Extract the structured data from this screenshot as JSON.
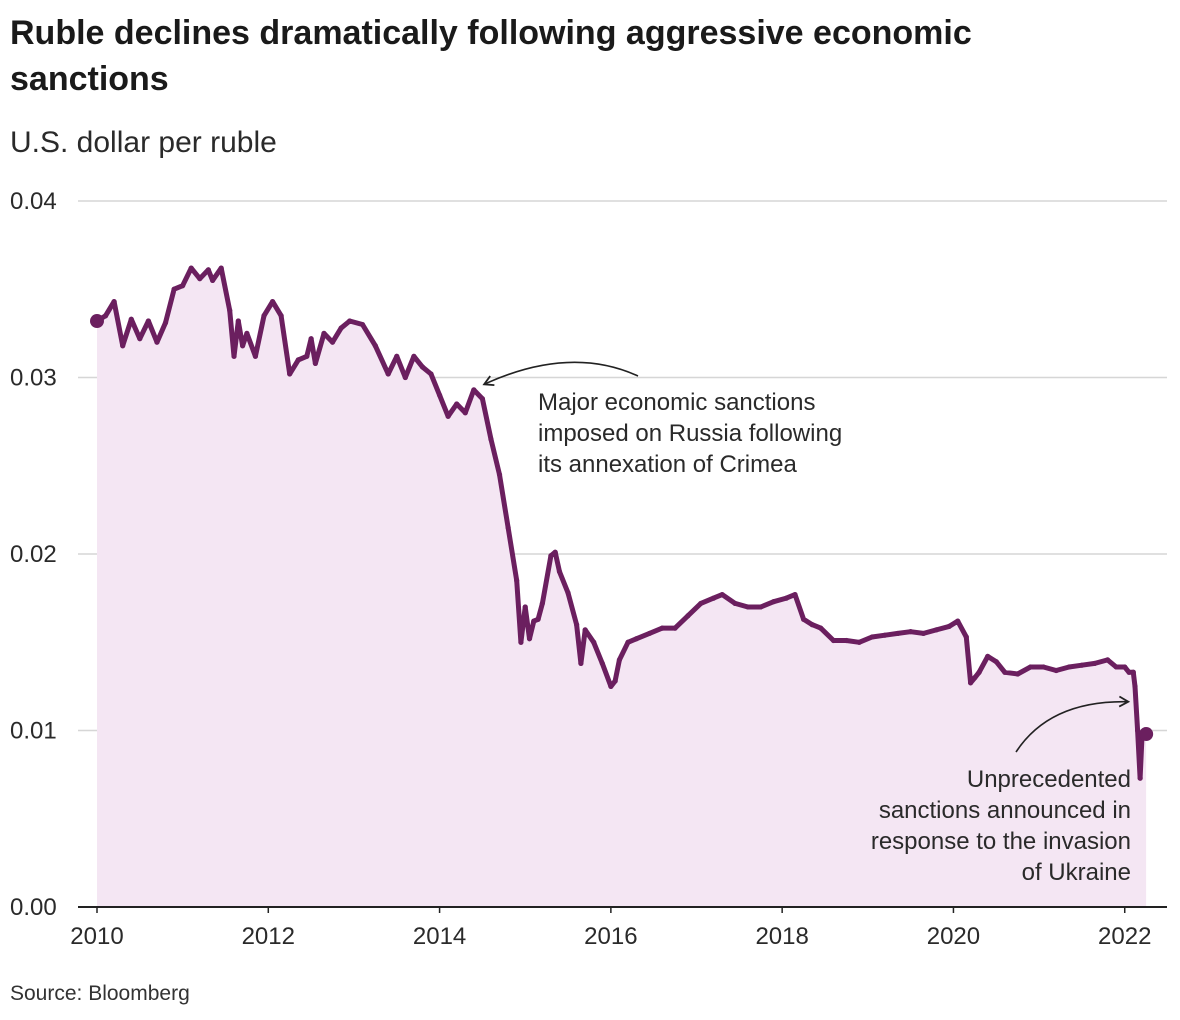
{
  "title": "Ruble declines dramatically following aggressive economic sanctions",
  "subtitle": "U.S. dollar per ruble",
  "source": "Source: Bloomberg",
  "colors": {
    "line": "#6b1f5f",
    "area": "#f4e6f3",
    "grid": "#d6d6d6",
    "axis": "#222222"
  },
  "chart_data": {
    "type": "area",
    "title": "Ruble declines dramatically following aggressive economic sanctions",
    "ylabel": "U.S. dollar per ruble",
    "xlabel": "",
    "xlim": [
      2010.0,
      2022.35
    ],
    "ylim": [
      0,
      0.04
    ],
    "grid": true,
    "xticks": [
      2010,
      2012,
      2014,
      2016,
      2018,
      2020,
      2022
    ],
    "xtick_labels": [
      "2010",
      "2012",
      "2014",
      "2016",
      "2018",
      "2020",
      "2022"
    ],
    "yticks": [
      0,
      0.01,
      0.02,
      0.03,
      0.04
    ],
    "ytick_labels": [
      "0.00",
      "0.01",
      "0.02",
      "0.03",
      "0.04"
    ],
    "series": [
      {
        "x": [
          2010.0,
          2010.1,
          2010.2,
          2010.3,
          2010.4,
          2010.5,
          2010.6,
          2010.7,
          2010.8,
          2010.9,
          2011.0,
          2011.1,
          2011.2,
          2011.3,
          2011.35,
          2011.45,
          2011.55,
          2011.6,
          2011.65,
          2011.7,
          2011.75,
          2011.85,
          2011.95,
          2012.05,
          2012.15,
          2012.25,
          2012.35,
          2012.45,
          2012.5,
          2012.55,
          2012.65,
          2012.75,
          2012.85,
          2012.95,
          2013.1,
          2013.25,
          2013.4,
          2013.5,
          2013.6,
          2013.7,
          2013.8,
          2013.9,
          2014.0,
          2014.1,
          2014.2,
          2014.3,
          2014.4,
          2014.5,
          2014.6,
          2014.7,
          2014.8,
          2014.9,
          2014.95,
          2015.0,
          2015.05,
          2015.1,
          2015.15,
          2015.2,
          2015.3,
          2015.35,
          2015.4,
          2015.5,
          2015.6,
          2015.65,
          2015.7,
          2015.8,
          2015.9,
          2016.0,
          2016.05,
          2016.1,
          2016.2,
          2016.3,
          2016.45,
          2016.6,
          2016.75,
          2016.9,
          2017.05,
          2017.2,
          2017.3,
          2017.45,
          2017.6,
          2017.75,
          2017.9,
          2018.05,
          2018.15,
          2018.25,
          2018.35,
          2018.45,
          2018.6,
          2018.75,
          2018.9,
          2019.05,
          2019.2,
          2019.35,
          2019.5,
          2019.65,
          2019.8,
          2019.95,
          2020.05,
          2020.15,
          2020.2,
          2020.25,
          2020.3,
          2020.4,
          2020.5,
          2020.6,
          2020.75,
          2020.9,
          2021.05,
          2021.2,
          2021.35,
          2021.5,
          2021.65,
          2021.8,
          2021.9,
          2022.0,
          2022.05,
          2022.1,
          2022.12,
          2022.15,
          2022.18,
          2022.2,
          2022.22,
          2022.25
        ],
        "y": [
          0.0332,
          0.0335,
          0.0343,
          0.0318,
          0.0333,
          0.0322,
          0.0332,
          0.032,
          0.0331,
          0.035,
          0.0352,
          0.0362,
          0.0356,
          0.0361,
          0.0355,
          0.0362,
          0.0338,
          0.0312,
          0.0332,
          0.0318,
          0.0325,
          0.0312,
          0.0335,
          0.0343,
          0.0335,
          0.0302,
          0.031,
          0.0312,
          0.0322,
          0.0308,
          0.0325,
          0.032,
          0.0328,
          0.0332,
          0.033,
          0.0318,
          0.0302,
          0.0312,
          0.03,
          0.0312,
          0.0306,
          0.0302,
          0.029,
          0.0278,
          0.0285,
          0.028,
          0.0293,
          0.0288,
          0.0265,
          0.0245,
          0.0215,
          0.0185,
          0.015,
          0.017,
          0.0152,
          0.0162,
          0.0163,
          0.0172,
          0.0199,
          0.0201,
          0.019,
          0.0178,
          0.016,
          0.0138,
          0.0157,
          0.015,
          0.0138,
          0.0125,
          0.0128,
          0.014,
          0.015,
          0.0152,
          0.0155,
          0.0158,
          0.0158,
          0.0165,
          0.0172,
          0.0175,
          0.0177,
          0.0172,
          0.017,
          0.017,
          0.0173,
          0.0175,
          0.0177,
          0.0163,
          0.016,
          0.0158,
          0.0151,
          0.0151,
          0.015,
          0.0153,
          0.0154,
          0.0155,
          0.0156,
          0.0155,
          0.0157,
          0.0159,
          0.0162,
          0.0153,
          0.0127,
          0.013,
          0.0133,
          0.0142,
          0.0139,
          0.0133,
          0.0132,
          0.0136,
          0.0136,
          0.0134,
          0.0136,
          0.0137,
          0.0138,
          0.014,
          0.0136,
          0.0136,
          0.0133,
          0.0133,
          0.0125,
          0.01,
          0.0073,
          0.0095,
          0.0097,
          0.0098
        ]
      }
    ],
    "endpoint_markers": [
      {
        "x": 2010.0,
        "y": 0.0332
      },
      {
        "x": 2022.25,
        "y": 0.0098
      }
    ],
    "annotations": [
      {
        "lines": [
          "Major economic sanctions",
          "imposed on Russia following",
          "its annexation of Crimea"
        ],
        "x": 2014.45,
        "y": 0.0295
      },
      {
        "lines": [
          "Unprecedented",
          "sanctions announced in",
          "response to the invasion",
          "of Ukraine"
        ],
        "x": 2022.1,
        "y": 0.0118
      }
    ]
  }
}
